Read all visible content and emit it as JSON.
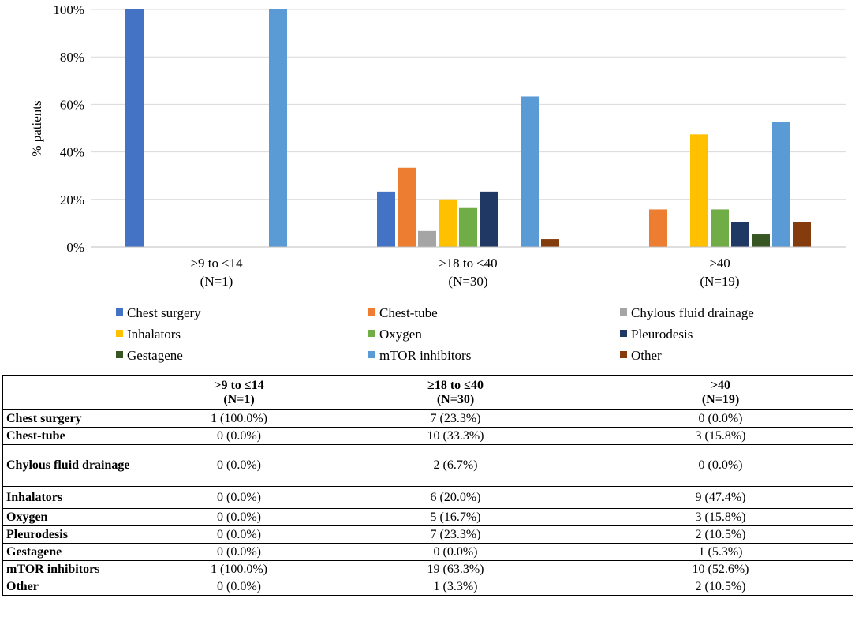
{
  "chart_data": {
    "type": "bar",
    "title": "",
    "xlabel": "",
    "ylabel": "% patients",
    "ylim": [
      0,
      100
    ],
    "yticks": [
      "0%",
      "20%",
      "40%",
      "60%",
      "80%",
      "100%"
    ],
    "grid": true,
    "legend_position": "bottom",
    "categories": [
      {
        "line1": ">9 to ≤14",
        "line2": "(N=1)"
      },
      {
        "line1": "≥18 to ≤40",
        "line2": "(N=30)"
      },
      {
        "line1": ">40",
        "line2": "(N=19)"
      }
    ],
    "series": [
      {
        "name": "Chest surgery",
        "color": "#4472C4",
        "values": [
          100.0,
          23.3,
          0.0
        ]
      },
      {
        "name": "Chest-tube",
        "color": "#ED7D31",
        "values": [
          0.0,
          33.3,
          15.8
        ]
      },
      {
        "name": "Chylous fluid drainage",
        "color": "#A5A5A5",
        "values": [
          0.0,
          6.7,
          0.0
        ]
      },
      {
        "name": "Inhalators",
        "color": "#FFC000",
        "values": [
          0.0,
          20.0,
          47.4
        ]
      },
      {
        "name": "Oxygen",
        "color": "#70AD47",
        "values": [
          0.0,
          16.7,
          15.8
        ]
      },
      {
        "name": "Pleurodesis",
        "color": "#203864",
        "values": [
          0.0,
          23.3,
          10.5
        ]
      },
      {
        "name": "Gestagene",
        "color": "#375623",
        "values": [
          0.0,
          0.0,
          5.3
        ]
      },
      {
        "name": "mTOR inhibitors",
        "color": "#5B9BD5",
        "values": [
          100.0,
          63.3,
          52.6
        ]
      },
      {
        "name": "Other",
        "color": "#843C0C",
        "values": [
          0.0,
          3.3,
          10.5
        ]
      }
    ]
  },
  "table": {
    "headers": [
      {
        "line1": "",
        "line2": ""
      },
      {
        "line1": ">9 to ≤14",
        "line2": "(N=1)"
      },
      {
        "line1": "≥18 to ≤40",
        "line2": "(N=30)"
      },
      {
        "line1": ">40",
        "line2": "(N=19)"
      }
    ],
    "rows": [
      {
        "label": "Chest surgery",
        "cells": [
          "1 (100.0%)",
          "7 (23.3%)",
          "0 (0.0%)"
        ]
      },
      {
        "label": "Chest-tube",
        "cells": [
          "0 (0.0%)",
          "10 (33.3%)",
          "3 (15.8%)"
        ]
      },
      {
        "label": "Chylous fluid drainage",
        "cells": [
          "0 (0.0%)",
          "2 (6.7%)",
          "0 (0.0%)"
        ]
      },
      {
        "label": "Inhalators",
        "cells": [
          "0 (0.0%)",
          "6 (20.0%)",
          "9 (47.4%)"
        ]
      },
      {
        "label": "Oxygen",
        "cells": [
          "0 (0.0%)",
          "5 (16.7%)",
          "3 (15.8%)"
        ]
      },
      {
        "label": "Pleurodesis",
        "cells": [
          "0 (0.0%)",
          "7 (23.3%)",
          "2 (10.5%)"
        ]
      },
      {
        "label": "Gestagene",
        "cells": [
          "0 (0.0%)",
          "0 (0.0%)",
          "1 (5.3%)"
        ]
      },
      {
        "label": "mTOR inhibitors",
        "cells": [
          "1 (100.0%)",
          "19 (63.3%)",
          "10 (52.6%)"
        ]
      },
      {
        "label": "Other",
        "cells": [
          "0 (0.0%)",
          "1 (3.3%)",
          "2 (10.5%)"
        ]
      }
    ]
  }
}
